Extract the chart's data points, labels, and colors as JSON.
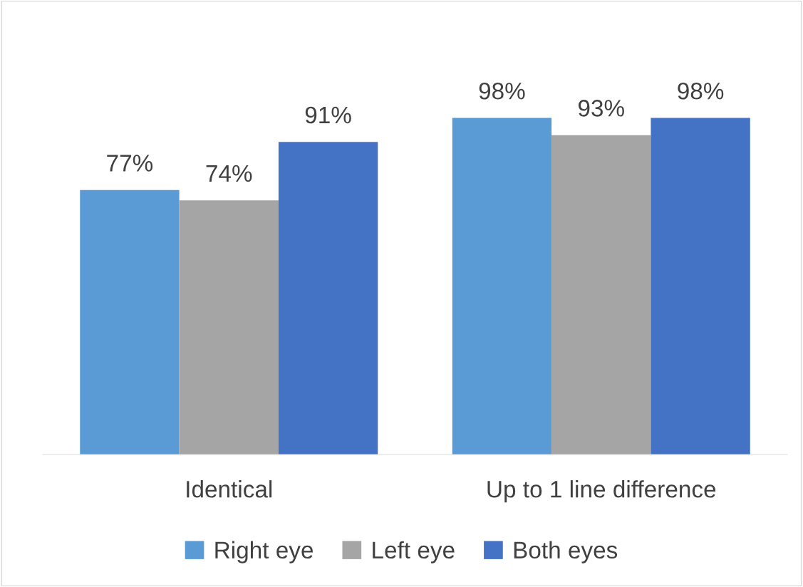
{
  "chart_data": {
    "type": "bar",
    "categories": [
      "Identical",
      "Up to 1 line difference"
    ],
    "series": [
      {
        "name": "Right eye",
        "color": "#5b9bd5",
        "values": [
          77,
          98
        ],
        "value_labels": [
          "77%",
          "98%"
        ]
      },
      {
        "name": "Left eye",
        "color": "#a5a5a5",
        "values": [
          74,
          93
        ],
        "value_labels": [
          "74%",
          "93%"
        ]
      },
      {
        "name": "Both eyes",
        "color": "#4472c4",
        "values": [
          91,
          98
        ],
        "value_labels": [
          "91%",
          "98%"
        ]
      }
    ],
    "grid": false,
    "legend": "bottom"
  }
}
